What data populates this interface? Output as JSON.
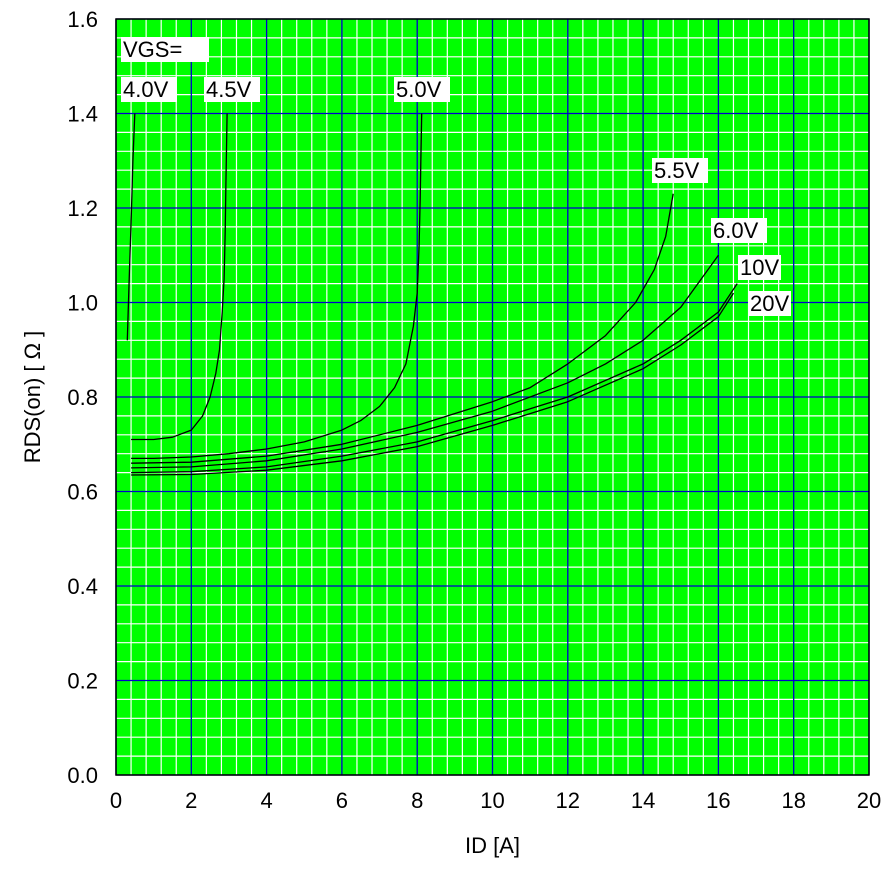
{
  "chart_data": {
    "type": "line",
    "title": "",
    "xlabel": "ID [A]",
    "ylabel": "RDS(on) [ Ω ]",
    "xlim": [
      0,
      20
    ],
    "ylim": [
      0,
      1.6
    ],
    "x_ticks": [
      "0",
      "2",
      "4",
      "6",
      "8",
      "10",
      "12",
      "14",
      "16",
      "18",
      "20"
    ],
    "y_ticks": [
      "0.0",
      "0.2",
      "0.4",
      "0.6",
      "0.8",
      "1.0",
      "1.2",
      "1.4",
      "1.6"
    ],
    "grid": {
      "major": true,
      "minor": true
    },
    "legend_title": "VGS=",
    "colors": {
      "background": "#00ff00",
      "major_grid": "#0000cc",
      "minor_grid": "#ffffff",
      "line": "#000000"
    },
    "series": [
      {
        "name": "4.0V",
        "x": [
          0.3,
          0.35,
          0.4,
          0.45,
          0.5
        ],
        "y": [
          0.92,
          1.05,
          1.17,
          1.3,
          1.4
        ]
      },
      {
        "name": "4.5V",
        "x": [
          0.4,
          1.0,
          1.5,
          2.0,
          2.3,
          2.5,
          2.65,
          2.75,
          2.82,
          2.87,
          2.9,
          2.92,
          2.95
        ],
        "y": [
          0.71,
          0.71,
          0.715,
          0.73,
          0.76,
          0.8,
          0.85,
          0.9,
          0.98,
          1.05,
          1.15,
          1.25,
          1.4
        ]
      },
      {
        "name": "5.0V",
        "x": [
          0.4,
          1.0,
          2.0,
          3.0,
          4.0,
          5.0,
          6.0,
          6.5,
          7.0,
          7.4,
          7.7,
          7.9,
          8.0,
          8.05,
          8.08,
          8.1,
          8.12
        ],
        "y": [
          0.67,
          0.67,
          0.673,
          0.68,
          0.69,
          0.705,
          0.73,
          0.75,
          0.78,
          0.82,
          0.87,
          0.95,
          1.02,
          1.12,
          1.22,
          1.32,
          1.4
        ]
      },
      {
        "name": "5.5V",
        "x": [
          0.4,
          2.0,
          4.0,
          6.0,
          8.0,
          10.0,
          11.0,
          12.0,
          13.0,
          13.8,
          14.3,
          14.6,
          14.8
        ],
        "y": [
          0.66,
          0.662,
          0.675,
          0.7,
          0.74,
          0.79,
          0.82,
          0.87,
          0.93,
          1.0,
          1.07,
          1.14,
          1.23
        ]
      },
      {
        "name": "6.0V",
        "x": [
          0.4,
          2.0,
          4.0,
          6.0,
          8.0,
          10.0,
          12.0,
          13.0,
          14.0,
          15.0,
          16.0
        ],
        "y": [
          0.65,
          0.652,
          0.665,
          0.69,
          0.725,
          0.77,
          0.83,
          0.87,
          0.92,
          0.99,
          1.1
        ]
      },
      {
        "name": "10V",
        "x": [
          0.4,
          2.0,
          4.0,
          6.0,
          8.0,
          10.0,
          12.0,
          14.0,
          15.0,
          16.0,
          16.5
        ],
        "y": [
          0.64,
          0.642,
          0.652,
          0.675,
          0.705,
          0.75,
          0.8,
          0.87,
          0.92,
          0.98,
          1.04
        ]
      },
      {
        "name": "20V",
        "x": [
          0.4,
          2.0,
          4.0,
          6.0,
          8.0,
          10.0,
          12.0,
          14.0,
          15.0,
          16.0,
          16.4
        ],
        "y": [
          0.635,
          0.636,
          0.645,
          0.665,
          0.695,
          0.74,
          0.79,
          0.86,
          0.91,
          0.97,
          1.02
        ]
      }
    ]
  }
}
